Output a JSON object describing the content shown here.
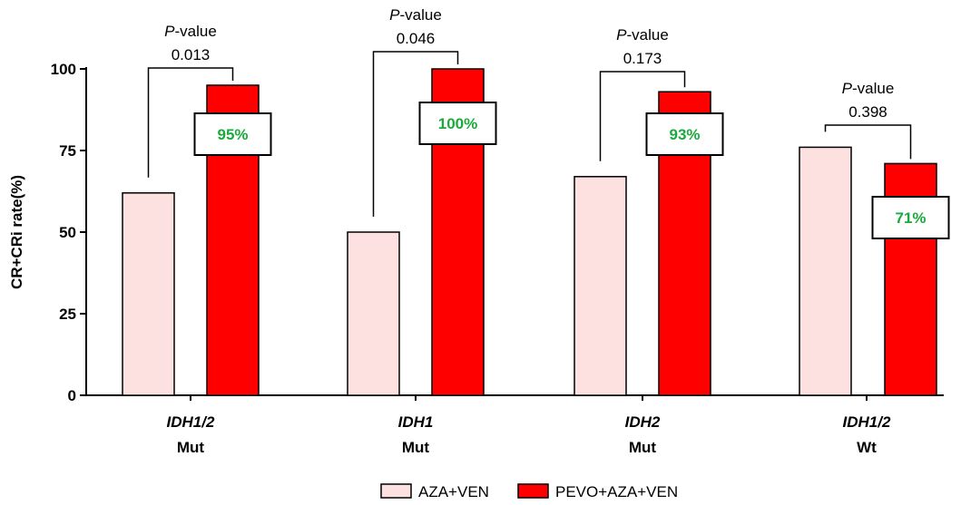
{
  "chart_data": {
    "type": "bar",
    "ylabel": "CR+CRi rate(%)",
    "ylim": [
      0,
      100
    ],
    "yticks": [
      0,
      25,
      50,
      75,
      100
    ],
    "categories": [
      {
        "line1": "IDH1/2",
        "line2": "Mut"
      },
      {
        "line1": "IDH1",
        "line2": "Mut"
      },
      {
        "line1": "IDH2",
        "line2": "Mut"
      },
      {
        "line1": "IDH1/2",
        "line2": "Wt"
      }
    ],
    "series": [
      {
        "name": "AZA+VEN",
        "color": "#fde0e0",
        "values": [
          62,
          50,
          67,
          76
        ]
      },
      {
        "name": "PEVO+AZA+VEN",
        "color": "#ff0000",
        "values": [
          95,
          100,
          93,
          71
        ]
      }
    ],
    "data_labels": [
      "95%",
      "100%",
      "93%",
      "71%"
    ],
    "data_label_color": "#1aaa3c",
    "pvalue_label_prefix": "P",
    "pvalue_label_suffix": "-value",
    "pvalues": [
      "0.013",
      "0.046",
      "0.173",
      "0.398"
    ],
    "legend_position": "bottom-center"
  }
}
